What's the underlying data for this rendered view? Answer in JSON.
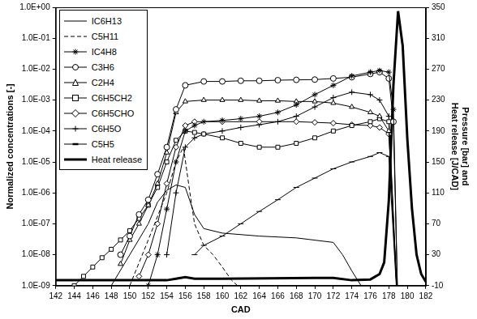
{
  "chart_data": {
    "type": "line",
    "x_label": "CAD",
    "y_label": "Normalized concentrations [-]",
    "y2_label": [
      "Pressure [bar] and",
      "Heat release [J/CAD]"
    ],
    "xlim": [
      142,
      182
    ],
    "xticks": [
      142,
      144,
      146,
      148,
      150,
      152,
      154,
      156,
      158,
      160,
      162,
      164,
      166,
      168,
      170,
      172,
      174,
      176,
      178,
      180,
      182
    ],
    "ylim": [
      1e-09,
      1
    ],
    "yticks": [
      {
        "value": 1,
        "label": "1.0E+00"
      },
      {
        "value": 0.1,
        "label": "1.0E-01"
      },
      {
        "value": 0.01,
        "label": "1.0E-02"
      },
      {
        "value": 0.001,
        "label": "1.0E-03"
      },
      {
        "value": 0.0001,
        "label": "1.0E-04"
      },
      {
        "value": 1e-05,
        "label": "1.0E-05"
      },
      {
        "value": 1e-06,
        "label": "1.0E-06"
      },
      {
        "value": 1e-07,
        "label": "1.0E-07"
      },
      {
        "value": 1e-08,
        "label": "1.0E-08"
      },
      {
        "value": 1e-09,
        "label": "1.0E-09"
      }
    ],
    "y2lim": [
      -10,
      350
    ],
    "y2ticks": [
      -10,
      30,
      70,
      110,
      150,
      190,
      230,
      270,
      310,
      350
    ],
    "log": "y",
    "grid": false,
    "legend": "upper left",
    "series": [
      {
        "name": "IC6H13",
        "color": "#000000",
        "marker": "none",
        "line_style": "solid",
        "x": [
          148,
          150,
          152,
          153,
          154,
          155,
          156,
          157,
          158,
          160,
          164,
          168,
          172,
          173,
          174,
          175,
          176
        ],
        "values": [
          1e-09,
          1e-08,
          1e-07,
          5e-07,
          1.2e-06,
          1.8e-06,
          1.5e-06,
          2e-07,
          7e-08,
          5e-08,
          4e-08,
          3.5e-08,
          2.5e-08,
          1e-08,
          3e-09,
          1e-09,
          5e-10
        ]
      },
      {
        "name": "C5H11",
        "color": "#000000",
        "marker": "none",
        "line_style": "dashed",
        "x": [
          150,
          152,
          154,
          155,
          155.8,
          156.5,
          157,
          158,
          159,
          160,
          161,
          162
        ],
        "values": [
          1e-09,
          3e-08,
          1e-06,
          1e-05,
          3e-05,
          1e-06,
          1e-07,
          2e-08,
          1e-08,
          4e-09,
          1.5e-09,
          8e-10
        ]
      },
      {
        "name": "IC4H8",
        "color": "#000000",
        "marker": "star",
        "line_style": "solid",
        "x": [
          152,
          153,
          154,
          155,
          156,
          157,
          158,
          160,
          162,
          164,
          166,
          168,
          170,
          172,
          174,
          176,
          177,
          178,
          178.5,
          179
        ],
        "values": [
          1e-09,
          1e-08,
          3e-07,
          1e-05,
          0.0001,
          0.00015,
          0.0002,
          0.00022,
          0.00025,
          0.0003,
          0.0004,
          0.0007,
          0.0015,
          0.003,
          0.006,
          0.008,
          0.009,
          0.008,
          0.0005,
          1e-10
        ]
      },
      {
        "name": "C3H6",
        "color": "#000000",
        "marker": "circle",
        "line_style": "solid",
        "x": [
          149,
          150,
          151,
          152,
          153,
          154,
          155,
          156,
          158,
          160,
          162,
          164,
          166,
          168,
          170,
          172,
          174,
          176,
          177,
          178,
          178.5,
          179
        ],
        "values": [
          1e-08,
          4e-08,
          2e-07,
          6e-07,
          4e-06,
          3e-05,
          0.0005,
          0.003,
          0.004,
          0.004,
          0.0042,
          0.0042,
          0.0044,
          0.0045,
          0.0046,
          0.005,
          0.0055,
          0.007,
          0.008,
          0.005,
          0.0002,
          1e-10
        ]
      },
      {
        "name": "C2H4",
        "color": "#000000",
        "marker": "triangle",
        "line_style": "solid",
        "x": [
          149,
          150,
          151,
          152,
          153,
          154,
          155,
          156,
          158,
          160,
          162,
          164,
          166,
          168,
          170,
          172,
          174,
          176,
          177,
          178,
          179
        ],
        "values": [
          5e-09,
          3e-08,
          1e-07,
          4e-07,
          2e-06,
          2e-05,
          0.0004,
          0.0009,
          0.001,
          0.001,
          0.001,
          0.00095,
          0.00095,
          0.0009,
          0.0009,
          0.0008,
          0.0006,
          0.0004,
          0.0003,
          0.0001,
          1e-10
        ]
      },
      {
        "name": "C6H5CH2",
        "color": "#000000",
        "marker": "square",
        "line_style": "solid",
        "x": [
          144,
          145,
          146,
          147,
          148,
          149,
          150,
          151,
          152,
          153,
          154,
          155,
          156,
          157,
          158,
          160,
          162,
          164,
          166,
          168,
          170,
          172,
          174,
          176,
          177,
          178,
          179
        ],
        "values": [
          1e-09,
          2e-09,
          4e-09,
          8e-09,
          1.5e-08,
          3e-08,
          6e-08,
          1.5e-07,
          4e-07,
          1.5e-06,
          1e-05,
          5e-05,
          0.0001,
          9e-05,
          8e-05,
          6e-05,
          4e-05,
          3e-05,
          3e-05,
          4e-05,
          6e-05,
          0.0001,
          0.00015,
          0.0002,
          0.00025,
          0.0002,
          1e-10
        ]
      },
      {
        "name": "C6H5CHO",
        "color": "#000000",
        "marker": "diamond",
        "line_style": "solid",
        "x": [
          151,
          152,
          153,
          154,
          155,
          156,
          157,
          160,
          164,
          168,
          170,
          172,
          174,
          176,
          177,
          178,
          179
        ],
        "values": [
          2e-09,
          1e-08,
          1e-07,
          2e-06,
          3e-05,
          0.00015,
          0.0002,
          0.0002,
          0.0002,
          0.0002,
          0.00019,
          0.00018,
          0.00016,
          0.00015,
          0.00013,
          8e-05,
          1e-10
        ]
      },
      {
        "name": "C6H5O",
        "color": "#000000",
        "marker": "cross",
        "line_style": "solid",
        "x": [
          154,
          155,
          156,
          157,
          158,
          160,
          162,
          164,
          166,
          168,
          170,
          172,
          174,
          176,
          177,
          178,
          179
        ],
        "values": [
          1e-08,
          1e-06,
          3e-05,
          6e-05,
          8e-05,
          0.0001,
          0.00013,
          0.00016,
          0.0002,
          0.0003,
          0.0006,
          0.0012,
          0.0018,
          0.0015,
          0.001,
          0.0003,
          1e-10
        ]
      },
      {
        "name": "C5H5",
        "color": "#000000",
        "marker": "dash",
        "line_style": "solid",
        "x": [
          157,
          158,
          160,
          162,
          164,
          166,
          168,
          170,
          172,
          174,
          176,
          177,
          178,
          179
        ],
        "values": [
          1e-08,
          2e-08,
          4e-08,
          1e-07,
          2.5e-07,
          6e-07,
          1.5e-06,
          3e-06,
          6e-06,
          1e-05,
          1.5e-05,
          2e-05,
          1.5e-05,
          1e-10
        ]
      },
      {
        "name": "Heat release",
        "color": "#000000",
        "marker": "none",
        "line_style": "solid",
        "axis": "y2",
        "x": [
          142,
          150,
          154,
          155,
          156,
          157,
          160,
          165,
          170,
          172,
          174,
          176,
          177,
          177.5,
          178,
          178.5,
          179,
          179.5,
          180,
          180.5,
          181,
          181.5,
          182
        ],
        "values": [
          -3,
          -3,
          -3,
          -1,
          1,
          -1,
          -1,
          -0.5,
          0,
          0,
          -3,
          -2,
          5,
          20,
          100,
          250,
          345,
          300,
          180,
          90,
          30,
          5,
          -5
        ]
      }
    ]
  }
}
